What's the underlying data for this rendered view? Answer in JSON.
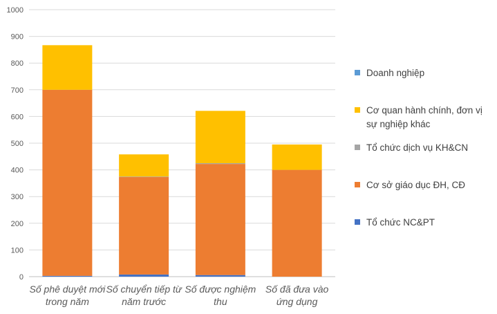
{
  "chart_data": {
    "type": "bar",
    "stacked": true,
    "categories": [
      "Số phê duyệt mới trong năm",
      "Số chuyển tiếp từ năm trước",
      "Số được nghiệm thu",
      "Số đã đưa vào ứng dụng"
    ],
    "category_lines": [
      [
        "Số phê duyệt mới",
        "trong năm"
      ],
      [
        "Số chuyển tiếp từ",
        "năm trước"
      ],
      [
        "Số được nghiệm",
        "thu"
      ],
      [
        "Số đã đưa vào",
        "ứng dụng"
      ]
    ],
    "series": [
      {
        "name": "Tổ chức NC&PT",
        "color": "#4472C4",
        "values": [
          3,
          8,
          6,
          0
        ]
      },
      {
        "name": "Cơ sở giáo dục ĐH, CĐ",
        "color": "#ED7D31",
        "values": [
          697,
          365,
          416,
          400
        ]
      },
      {
        "name": "Tổ chức dịch vụ KH&CN",
        "color": "#A5A5A5",
        "values": [
          0,
          2,
          3,
          0
        ]
      },
      {
        "name": "Cơ quan hành chính, đơn vị sự nghiệp khác",
        "color": "#FFC000",
        "values": [
          167,
          83,
          196,
          95
        ]
      },
      {
        "name": "Doanh nghiệp",
        "color": "#5B9BD5",
        "values": [
          0,
          0,
          0,
          0
        ]
      }
    ],
    "legend_order": [
      4,
      3,
      2,
      1,
      0
    ],
    "legend_lines": [
      [
        "Doanh nghiệp"
      ],
      [
        "Cơ quan hành chính, đơn vị",
        "sự nghiệp khác"
      ],
      [
        "Tổ chức dịch vụ KH&CN"
      ],
      [
        "Cơ sở giáo dục ĐH, CĐ"
      ],
      [
        "Tổ chức NC&PT"
      ]
    ],
    "yticks": [
      "0",
      "100",
      "200",
      "300",
      "400",
      "500",
      "600",
      "700",
      "800",
      "900",
      "1000"
    ],
    "ylim": [
      0,
      1000
    ],
    "grid": true,
    "legend": "right",
    "title": "",
    "xlabel": "",
    "ylabel": ""
  }
}
